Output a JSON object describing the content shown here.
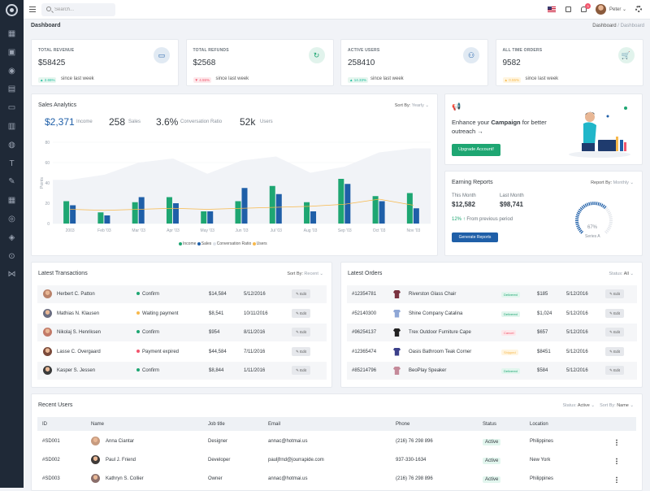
{
  "app": {
    "search_placeholder": "Search...",
    "user_name": "Peter",
    "notif_count": "3",
    "sidebar_icons": [
      "grid-icon",
      "apps-icon",
      "user-icon",
      "layers-icon",
      "file-icon",
      "briefcase-icon",
      "globe-icon",
      "text-icon",
      "tool-icon",
      "table-icon",
      "chart-icon",
      "stack-icon",
      "map-pin-icon",
      "share-icon"
    ]
  },
  "page": {
    "title": "Dashboard",
    "crumb_home": "Dashboard",
    "crumb_sep": "/",
    "crumb_current": "Dashboard"
  },
  "stats": [
    {
      "label": "TOTAL REVENUE",
      "value": "$58425",
      "change": "2.65%",
      "dir": "up",
      "since": "since last week",
      "icon": "money-icon",
      "color": "#1f5fa8"
    },
    {
      "label": "TOTAL REFUNDS",
      "value": "$2568",
      "change": "4.55%",
      "dir": "down",
      "since": "since last week",
      "icon": "refresh-icon",
      "color": "#1ea672"
    },
    {
      "label": "ACTIVE USERS",
      "value": "258410",
      "change": "14.33%",
      "dir": "up",
      "since": "since last week",
      "icon": "users-icon",
      "color": "#1f5fa8"
    },
    {
      "label": "ALL TIME ORDERS",
      "value": "9582",
      "change": "0.55%",
      "dir": "warn",
      "since": "since last week",
      "icon": "cart-icon",
      "color": "#1ea672"
    }
  ],
  "analytics": {
    "title": "Sales Analytics",
    "sort_label": "Sort By:",
    "sort_value": "Yearly",
    "kpis": [
      {
        "value": "$2,371",
        "label": "Income"
      },
      {
        "value": "258",
        "label": "Sales"
      },
      {
        "value": "3.6%",
        "label": "Conversation Ratio"
      },
      {
        "value": "52k",
        "label": "Users"
      }
    ],
    "legend": [
      "Income",
      "Sales",
      "Conversation Ratio",
      "Users"
    ]
  },
  "chart_data": {
    "type": "bar",
    "categories": [
      "2003",
      "Feb '03",
      "Mar '03",
      "Apr '03",
      "May '03",
      "Jun '03",
      "Jul '03",
      "Aug '03",
      "Sep '03",
      "Oct '03",
      "Nov '03"
    ],
    "yticks": [
      "0",
      "20",
      "40",
      "60",
      "80"
    ],
    "ylabel": "Points",
    "ylim": [
      0,
      80
    ],
    "series": [
      {
        "name": "Income",
        "color": "#1ea672",
        "values": [
          22,
          11,
          21,
          26,
          12,
          22,
          37,
          21,
          44,
          27,
          30
        ]
      },
      {
        "name": "Sales",
        "color": "#1f5fa8",
        "values": [
          18,
          8,
          26,
          20,
          12,
          35,
          29,
          12,
          39,
          22,
          15
        ]
      },
      {
        "name": "Conversation Ratio",
        "color": "#f1f3f7",
        "values": [
          43,
          48,
          60,
          64,
          49,
          62,
          66,
          50,
          56,
          70,
          74
        ]
      },
      {
        "name": "Users",
        "color": "#f7b84b",
        "values": [
          14,
          13,
          14,
          15,
          14,
          15,
          16,
          17,
          19,
          24,
          18
        ]
      }
    ]
  },
  "campaign": {
    "text_pre": "Enhance your ",
    "text_bold": "Campaign",
    "text_post": " for better outreach",
    "arrow": "→",
    "button": "Upgrade Account!"
  },
  "earning": {
    "title": "Earning Reports",
    "sort_label": "Report By:",
    "sort_value": "Monthly",
    "this_month_label": "This Month",
    "this_month": "$12,582",
    "last_month_label": "Last Month",
    "last_month": "$98,741",
    "growth": "12%",
    "growth_arrow": "↑",
    "growth_text": "From previous period",
    "button": "Generate Reports",
    "gauge_value": "67%",
    "gauge_label": "Series A",
    "gauge_fraction": 0.67
  },
  "transactions": {
    "title": "Latest Transactions",
    "sort_label": "Sort By:",
    "sort_value": "Recent",
    "edit_label": "Edit",
    "rows": [
      {
        "name": "Herbert C. Patton",
        "status": "Confirm",
        "status_color": "#1ea672",
        "amount": "$14,584",
        "date": "5/12/2016",
        "avatar": "#b9826a"
      },
      {
        "name": "Mathias N. Klausen",
        "status": "Waiting payment",
        "status_color": "#f7b84b",
        "amount": "$8,541",
        "date": "10/11/2016",
        "avatar": "#6a6d80"
      },
      {
        "name": "Nikolaj S. Henriksen",
        "status": "Confirm",
        "status_color": "#1ea672",
        "amount": "$954",
        "date": "8/11/2016",
        "avatar": "#c27a68"
      },
      {
        "name": "Lasse C. Overgaard",
        "status": "Payment expired",
        "status_color": "#f1556c",
        "amount": "$44,584",
        "date": "7/11/2016",
        "avatar": "#7b4a3a"
      },
      {
        "name": "Kasper S. Jessen",
        "status": "Confirm",
        "status_color": "#1ea672",
        "amount": "$8,844",
        "date": "1/11/2016",
        "avatar": "#3a3a3a"
      }
    ]
  },
  "orders": {
    "title": "Latest Orders",
    "status_label": "Status:",
    "status_value": "All",
    "edit_label": "Edit",
    "rows": [
      {
        "id": "#12354781",
        "product": "Riverston Glass Chair",
        "status": "Delivered",
        "cls": "s-delivered",
        "price": "$185",
        "date": "5/12/2016",
        "color": "#7a3340"
      },
      {
        "id": "#52140300",
        "product": "Shine Company Catalina",
        "status": "Delivered",
        "cls": "s-delivered",
        "price": "$1,024",
        "date": "5/12/2016",
        "color": "#8fa7d6"
      },
      {
        "id": "#96254137",
        "product": "Trex Outdoor Furniture Cape",
        "status": "Cancel",
        "cls": "s-cancel",
        "price": "$657",
        "date": "5/12/2016",
        "color": "#222"
      },
      {
        "id": "#12365474",
        "product": "Oasis Bathroom Teak Corner",
        "status": "Shipped",
        "cls": "s-shipped",
        "price": "$8451",
        "date": "5/12/2016",
        "color": "#3b3f8a"
      },
      {
        "id": "#85214796",
        "product": "BeoPlay Speaker",
        "status": "Delivered",
        "cls": "s-delivered",
        "price": "$584",
        "date": "5/12/2016",
        "color": "#c58a9a"
      }
    ]
  },
  "users": {
    "title": "Recent Users",
    "status_label": "Status:",
    "status_value": "Active",
    "sort_label": "Sort By:",
    "sort_value": "Name",
    "headers": [
      "ID",
      "Name",
      "Job title",
      "Email",
      "Phone",
      "Status",
      "Location"
    ],
    "rows": [
      {
        "id": "#SD001",
        "name": "Anna Ciantar",
        "job": "Designer",
        "email": "annac@hotmai.us",
        "phone": "(216) 76 298 896",
        "status": "Active",
        "location": "Philippines",
        "avatar": "#c79b7f"
      },
      {
        "id": "#SD002",
        "name": "Paul J. Friend",
        "job": "Developer",
        "email": "pauljfrnd@jourrapide.com",
        "phone": "937-330-1634",
        "status": "Active",
        "location": "New York",
        "avatar": "#3f3a38"
      },
      {
        "id": "#SD003",
        "name": "Kathryn S. Collier",
        "job": "Owner",
        "email": "annac@hotmai.us",
        "phone": "(216) 76 298 896",
        "status": "Active",
        "location": "Philippines",
        "avatar": "#8a6e6a"
      }
    ]
  }
}
